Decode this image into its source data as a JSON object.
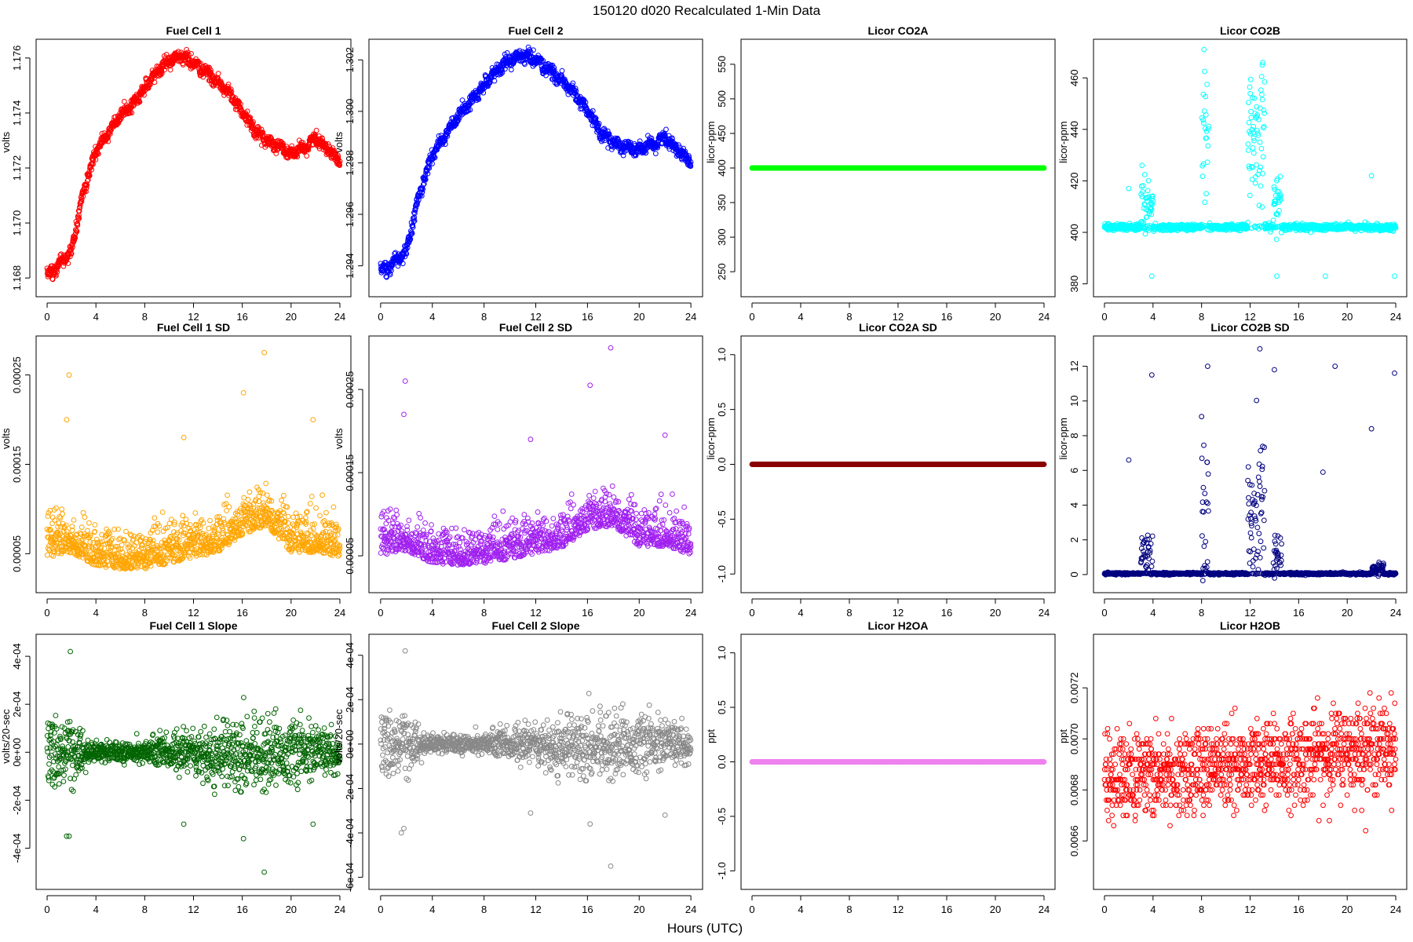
{
  "figure": {
    "title": "150120   d020   Recalculated 1-Min Data",
    "xlabel": "Hours (UTC)"
  },
  "chart_data": [
    {
      "id": "fc1",
      "type": "scatter",
      "title": "Fuel Cell 1",
      "ylabel": "volts",
      "color": "#ff0000",
      "xlim": [
        0,
        24
      ],
      "ylim": [
        1.1676,
        1.1764
      ],
      "xticks": [
        0,
        4,
        8,
        12,
        16,
        20,
        24
      ],
      "yticks": [
        1.168,
        1.17,
        1.172,
        1.174,
        1.176
      ],
      "ytick_labels": [
        "1.168",
        "1.170",
        "1.172",
        "1.174",
        "1.176"
      ],
      "pattern": "trend",
      "points": [
        [
          0,
          1.1681
        ],
        [
          1,
          1.1685
        ],
        [
          2,
          1.169
        ],
        [
          3,
          1.1712
        ],
        [
          4,
          1.1726
        ],
        [
          5,
          1.1733
        ],
        [
          6,
          1.1739
        ],
        [
          7,
          1.1743
        ],
        [
          8,
          1.1749
        ],
        [
          9,
          1.1755
        ],
        [
          10,
          1.1759
        ],
        [
          11,
          1.1761
        ],
        [
          12,
          1.1758
        ],
        [
          13,
          1.1755
        ],
        [
          14,
          1.1751
        ],
        [
          15,
          1.1747
        ],
        [
          16,
          1.174
        ],
        [
          17,
          1.1734
        ],
        [
          18,
          1.173
        ],
        [
          19,
          1.1728
        ],
        [
          20,
          1.1725
        ],
        [
          21,
          1.1727
        ],
        [
          22,
          1.1731
        ],
        [
          23,
          1.1727
        ],
        [
          24,
          1.1723
        ]
      ],
      "noise": 0.00022
    },
    {
      "id": "fc2",
      "type": "scatter",
      "title": "Fuel Cell 2",
      "ylabel": "volts",
      "color": "#0000ff",
      "xlim": [
        0,
        24
      ],
      "ylim": [
        1.2931,
        1.3025
      ],
      "xticks": [
        0,
        4,
        8,
        12,
        16,
        20,
        24
      ],
      "yticks": [
        1.294,
        1.296,
        1.298,
        1.3,
        1.302
      ],
      "ytick_labels": [
        "1.294",
        "1.296",
        "1.298",
        "1.300",
        "1.302"
      ],
      "pattern": "trend",
      "points": [
        [
          0,
          1.2938
        ],
        [
          1,
          1.2941
        ],
        [
          2,
          1.2946
        ],
        [
          3,
          1.2968
        ],
        [
          4,
          1.2983
        ],
        [
          5,
          1.2991
        ],
        [
          6,
          1.2998
        ],
        [
          7,
          1.3004
        ],
        [
          8,
          1.301
        ],
        [
          9,
          1.3016
        ],
        [
          10,
          1.302
        ],
        [
          11,
          1.3022
        ],
        [
          12,
          1.302
        ],
        [
          13,
          1.3016
        ],
        [
          14,
          1.3012
        ],
        [
          15,
          1.3007
        ],
        [
          16,
          1.3
        ],
        [
          17,
          1.2992
        ],
        [
          18,
          1.2988
        ],
        [
          19,
          1.2986
        ],
        [
          20,
          1.2985
        ],
        [
          21,
          1.2987
        ],
        [
          22,
          1.299
        ],
        [
          23,
          1.2985
        ],
        [
          24,
          1.2981
        ]
      ],
      "noise": 0.00025
    },
    {
      "id": "co2a",
      "type": "scatter",
      "title": "Licor CO2A",
      "ylabel": "licor-ppm",
      "color": "#00ff00",
      "xlim": [
        0,
        24
      ],
      "ylim": [
        225,
        575
      ],
      "xticks": [
        0,
        4,
        8,
        12,
        16,
        20,
        24
      ],
      "yticks": [
        250,
        300,
        350,
        400,
        450,
        500,
        550
      ],
      "ytick_labels": [
        "250",
        "300",
        "350",
        "400",
        "450",
        "500",
        "550"
      ],
      "pattern": "flat",
      "value": 400,
      "noise": 0
    },
    {
      "id": "co2b",
      "type": "scatter",
      "title": "Licor CO2B",
      "ylabel": "licor-ppm",
      "color": "#00ffff",
      "xlim": [
        0,
        24
      ],
      "ylim": [
        378,
        472
      ],
      "xticks": [
        0,
        4,
        8,
        12,
        16,
        20,
        24
      ],
      "yticks": [
        380,
        400,
        420,
        440,
        460
      ],
      "ytick_labels": [
        "380",
        "400",
        "420",
        "440",
        "460"
      ],
      "pattern": "baseline-bursts",
      "base": 402,
      "noise": 0.6,
      "bursts": [
        [
          3.0,
          4.0,
          411,
          5
        ],
        [
          8.0,
          8.6,
          436,
          14
        ],
        [
          11.8,
          13.2,
          437,
          14
        ],
        [
          13.9,
          14.6,
          413,
          5
        ]
      ],
      "outliers": [
        [
          8.2,
          471
        ],
        [
          13.0,
          465
        ],
        [
          3.9,
          383
        ],
        [
          14.2,
          383
        ],
        [
          18.2,
          383
        ],
        [
          23.9,
          383
        ],
        [
          3.1,
          426
        ],
        [
          22.0,
          422
        ],
        [
          2.0,
          417
        ]
      ]
    },
    {
      "id": "fc1sd",
      "type": "scatter",
      "title": "Fuel Cell 1 SD",
      "ylabel": "volts",
      "color": "#ffa500",
      "xlim": [
        0,
        24
      ],
      "ylim": [
        1.5e-05,
        0.000285
      ],
      "xticks": [
        0,
        4,
        8,
        12,
        16,
        20,
        24
      ],
      "yticks": [
        5e-05,
        0.00015,
        0.00025
      ],
      "ytick_labels": [
        "0.00005",
        "0.00015",
        "0.00025"
      ],
      "pattern": "sd-trend",
      "points": [
        [
          0,
          5.5e-05
        ],
        [
          2,
          6e-05
        ],
        [
          4,
          4.5e-05
        ],
        [
          6,
          4.2e-05
        ],
        [
          8,
          4.2e-05
        ],
        [
          10,
          4.8e-05
        ],
        [
          12,
          5.5e-05
        ],
        [
          14,
          6e-05
        ],
        [
          16,
          8e-05
        ],
        [
          18,
          9e-05
        ],
        [
          20,
          6e-05
        ],
        [
          22,
          6e-05
        ],
        [
          24,
          5.5e-05
        ]
      ],
      "noise": 3e-05,
      "outliers": [
        [
          1.8,
          0.00025
        ],
        [
          1.6,
          0.0002
        ],
        [
          17.8,
          0.000275
        ],
        [
          16.1,
          0.00023
        ],
        [
          11.2,
          0.00018
        ],
        [
          21.8,
          0.0002
        ]
      ]
    },
    {
      "id": "fc2sd",
      "type": "scatter",
      "title": "Fuel Cell 2 SD",
      "ylabel": "volts",
      "color": "#a020f0",
      "xlim": [
        0,
        24
      ],
      "ylim": [
        1.5e-05,
        0.000305
      ],
      "xticks": [
        0,
        4,
        8,
        12,
        16,
        20,
        24
      ],
      "yticks": [
        5e-05,
        0.00015,
        0.00025
      ],
      "ytick_labels": [
        "0.00005",
        "0.00015",
        "0.00025"
      ],
      "pattern": "sd-trend",
      "points": [
        [
          0,
          6e-05
        ],
        [
          2,
          6.5e-05
        ],
        [
          4,
          5e-05
        ],
        [
          6,
          4.8e-05
        ],
        [
          8,
          5e-05
        ],
        [
          10,
          5.5e-05
        ],
        [
          12,
          6.2e-05
        ],
        [
          14,
          6.8e-05
        ],
        [
          16,
          9e-05
        ],
        [
          18,
          9.5e-05
        ],
        [
          20,
          7e-05
        ],
        [
          22,
          7e-05
        ],
        [
          24,
          6e-05
        ]
      ],
      "noise": 3e-05,
      "outliers": [
        [
          1.9,
          0.00026
        ],
        [
          1.8,
          0.00022
        ],
        [
          17.8,
          0.0003
        ],
        [
          16.2,
          0.000255
        ],
        [
          11.6,
          0.00019
        ],
        [
          22.0,
          0.000195
        ]
      ]
    },
    {
      "id": "co2asd",
      "type": "scatter",
      "title": "Licor CO2A SD",
      "ylabel": "licor-ppm",
      "color": "#8b0000",
      "xlim": [
        0,
        24
      ],
      "ylim": [
        -1.1,
        1.1
      ],
      "xticks": [
        0,
        4,
        8,
        12,
        16,
        20,
        24
      ],
      "yticks": [
        -1.0,
        -0.5,
        0.0,
        0.5,
        1.0
      ],
      "ytick_labels": [
        "-1.0",
        "-0.5",
        "0.0",
        "0.5",
        "1.0"
      ],
      "pattern": "flat",
      "value": 0,
      "noise": 0
    },
    {
      "id": "co2bsd",
      "type": "scatter",
      "title": "Licor CO2B SD",
      "ylabel": "licor-ppm",
      "color": "#000080",
      "xlim": [
        0,
        24
      ],
      "ylim": [
        -0.6,
        13.3
      ],
      "xticks": [
        0,
        4,
        8,
        12,
        16,
        20,
        24
      ],
      "yticks": [
        0,
        2,
        4,
        6,
        8,
        10,
        12
      ],
      "ytick_labels": [
        "0",
        "2",
        "4",
        "6",
        "8",
        "10",
        "12"
      ],
      "pattern": "baseline-bursts",
      "base": 0.05,
      "noise": 0.03,
      "bursts": [
        [
          3.0,
          4.0,
          1.2,
          0.8
        ],
        [
          8.0,
          8.6,
          3.0,
          2.0
        ],
        [
          11.8,
          13.2,
          3.0,
          2.0
        ],
        [
          13.9,
          14.6,
          1.0,
          0.7
        ],
        [
          22.0,
          23.0,
          0.3,
          0.15
        ]
      ],
      "outliers": [
        [
          12.8,
          13.0
        ],
        [
          8.5,
          12.0
        ],
        [
          19.0,
          12.0
        ],
        [
          3.9,
          11.5
        ],
        [
          23.9,
          11.6
        ],
        [
          14.0,
          11.8
        ],
        [
          2.0,
          6.6
        ],
        [
          22.0,
          8.4
        ],
        [
          8.0,
          9.1
        ],
        [
          18.0,
          5.9
        ]
      ]
    },
    {
      "id": "fc1slope",
      "type": "scatter",
      "title": "Fuel Cell 1 Slope",
      "ylabel": "volts/20-sec",
      "color": "#006400",
      "xlim": [
        0,
        24
      ],
      "ylim": [
        -0.00054,
        0.00046
      ],
      "xticks": [
        0,
        4,
        8,
        12,
        16,
        20,
        24
      ],
      "yticks": [
        -0.0004,
        -0.0002,
        0,
        0.0002,
        0.0004
      ],
      "ytick_labels": [
        "-4e-04",
        "-2e-04",
        "0e+00",
        "2e-04",
        "4e-04"
      ],
      "pattern": "slope",
      "noise_profile": [
        [
          0,
          7e-05
        ],
        [
          2,
          6e-05
        ],
        [
          4,
          2e-05
        ],
        [
          8,
          2e-05
        ],
        [
          10,
          4e-05
        ],
        [
          12,
          5e-05
        ],
        [
          16,
          8e-05
        ],
        [
          20,
          6e-05
        ],
        [
          24,
          5e-05
        ]
      ],
      "outliers": [
        [
          1.9,
          0.00042
        ],
        [
          17.8,
          -0.0005
        ],
        [
          1.6,
          -0.00035
        ],
        [
          1.8,
          -0.00035
        ],
        [
          11.2,
          -0.0003
        ],
        [
          21.8,
          -0.0003
        ],
        [
          16.1,
          -0.00036
        ]
      ]
    },
    {
      "id": "fc2slope",
      "type": "scatter",
      "title": "Fuel Cell 2 Slope",
      "ylabel": "volts/20-sec",
      "color": "#888888",
      "xlim": [
        0,
        24
      ],
      "ylim": [
        -0.00062,
        0.00046
      ],
      "xticks": [
        0,
        4,
        8,
        12,
        16,
        20,
        24
      ],
      "yticks": [
        -0.0006,
        -0.0004,
        -0.0002,
        0,
        0.0002,
        0.0004
      ],
      "ytick_labels": [
        "-6e-04",
        "-4e-04",
        "-2e-04",
        "0e+00",
        "2e-04",
        "4e-04"
      ],
      "pattern": "slope",
      "noise_profile": [
        [
          0,
          7e-05
        ],
        [
          2,
          6e-05
        ],
        [
          4,
          2e-05
        ],
        [
          8,
          2e-05
        ],
        [
          10,
          4e-05
        ],
        [
          12,
          5e-05
        ],
        [
          16,
          8e-05
        ],
        [
          20,
          6e-05
        ],
        [
          24,
          5e-05
        ]
      ],
      "outliers": [
        [
          1.9,
          0.00042
        ],
        [
          17.8,
          -0.00055
        ],
        [
          1.6,
          -0.0004
        ],
        [
          1.8,
          -0.00038
        ],
        [
          11.6,
          -0.00031
        ],
        [
          22.0,
          -0.00032
        ],
        [
          16.2,
          -0.00036
        ]
      ]
    },
    {
      "id": "h2oa",
      "type": "scatter",
      "title": "Licor H2OA",
      "ylabel": "ppt",
      "color": "#ee82ee",
      "xlim": [
        0,
        24
      ],
      "ylim": [
        -1.1,
        1.1
      ],
      "xticks": [
        0,
        4,
        8,
        12,
        16,
        20,
        24
      ],
      "yticks": [
        -1.0,
        -0.5,
        0.0,
        0.5,
        1.0
      ],
      "ytick_labels": [
        "-1.0",
        "-0.5",
        "0.0",
        "0.5",
        "1.0"
      ],
      "pattern": "flat",
      "value": 0,
      "noise": 0
    },
    {
      "id": "h2ob",
      "type": "scatter",
      "title": "Licor H2OB",
      "ylabel": "ppt",
      "color": "#ff0000",
      "xlim": [
        0,
        24
      ],
      "ylim": [
        0.00644,
        0.00738
      ],
      "xticks": [
        0,
        4,
        8,
        12,
        16,
        20,
        24
      ],
      "yticks": [
        0.0066,
        0.0068,
        0.007,
        0.0072
      ],
      "ytick_labels": [
        "0.0066",
        "0.0068",
        "0.0070",
        "0.0072"
      ],
      "pattern": "quantized",
      "points": [
        [
          0,
          0.00684
        ],
        [
          4,
          0.00687
        ],
        [
          8,
          0.00689
        ],
        [
          12,
          0.0069
        ],
        [
          16,
          0.00692
        ],
        [
          20,
          0.00696
        ],
        [
          24,
          0.00697
        ]
      ],
      "step": 2e-05,
      "noise": 0.00012
    }
  ]
}
